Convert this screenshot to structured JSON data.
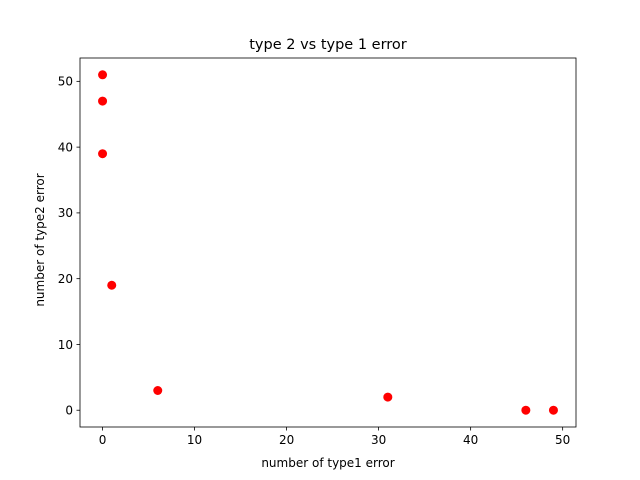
{
  "chart_data": {
    "type": "scatter",
    "title": "type 2 vs type 1 error",
    "xlabel": "number of type1 error",
    "ylabel": "number of type2 error",
    "xlim": [
      -2.45,
      51.45
    ],
    "ylim": [
      -2.55,
      53.55
    ],
    "xticks": [
      0,
      10,
      20,
      30,
      40,
      50
    ],
    "yticks": [
      0,
      10,
      20,
      30,
      40,
      50
    ],
    "grid": false,
    "series": [
      {
        "color": "#ff0000",
        "marker": "circle",
        "points": [
          {
            "x": 0,
            "y": 51
          },
          {
            "x": 0,
            "y": 47
          },
          {
            "x": 0,
            "y": 39
          },
          {
            "x": 1,
            "y": 19
          },
          {
            "x": 6,
            "y": 3
          },
          {
            "x": 31,
            "y": 2
          },
          {
            "x": 46,
            "y": 0
          },
          {
            "x": 49,
            "y": 0
          }
        ]
      }
    ]
  }
}
